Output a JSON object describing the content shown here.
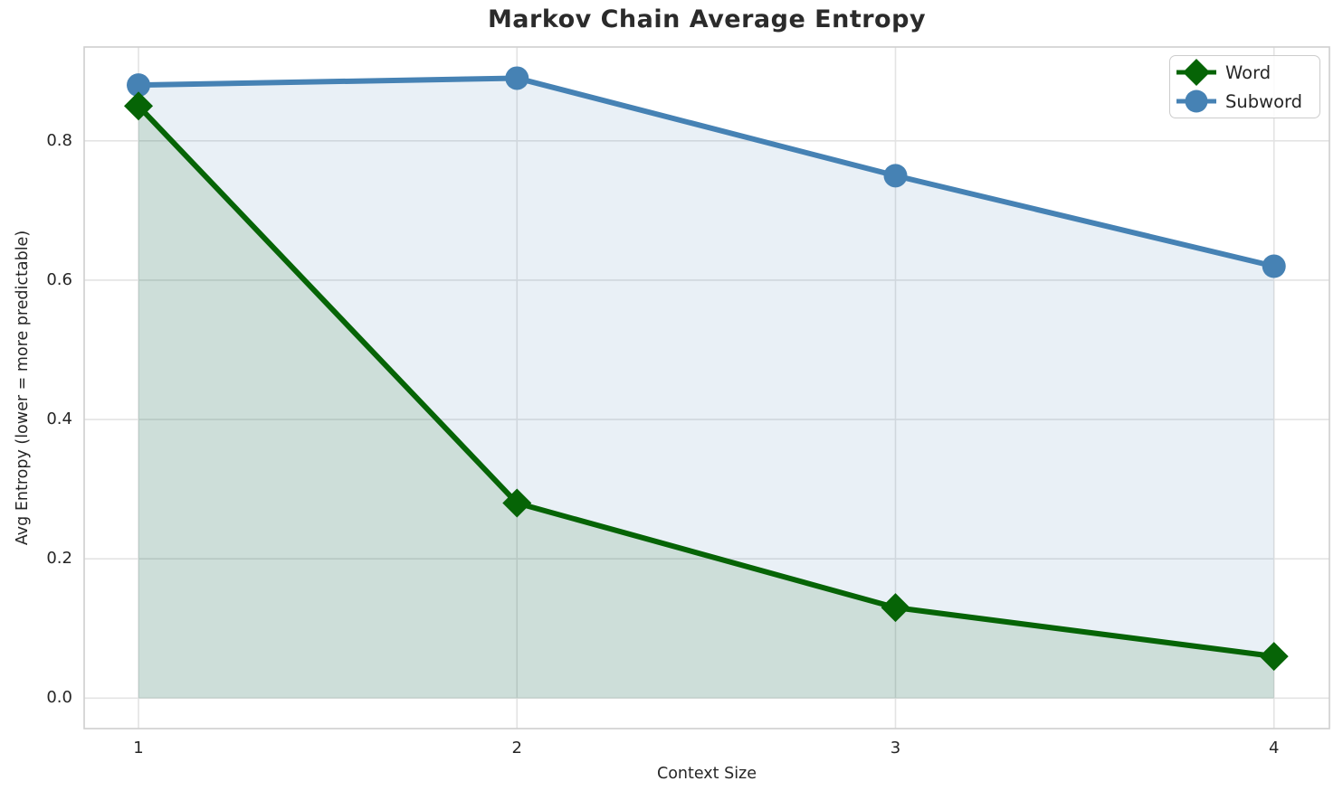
{
  "chart_data": {
    "type": "line",
    "title": "Markov Chain Average Entropy",
    "xlabel": "Context Size",
    "ylabel": "Avg Entropy (lower = more predictable)",
    "x": [
      1,
      2,
      3,
      4
    ],
    "series": [
      {
        "name": "Word",
        "values": [
          0.85,
          0.28,
          0.13,
          0.06
        ],
        "color": "#066406",
        "marker": "diamond",
        "fill": true
      },
      {
        "name": "Subword",
        "values": [
          0.88,
          0.89,
          0.75,
          0.62
        ],
        "color": "#4682b4",
        "marker": "circle",
        "fill": true
      }
    ],
    "xticks": [
      "1",
      "2",
      "3",
      "4"
    ],
    "xtick_values": [
      1,
      2,
      3,
      4
    ],
    "yticks": [
      "0.0",
      "0.2",
      "0.4",
      "0.6",
      "0.8"
    ],
    "ytick_values": [
      0.0,
      0.2,
      0.4,
      0.6,
      0.8
    ],
    "xlim": [
      0.8565,
      4.1465
    ],
    "ylim": [
      -0.0437,
      0.9347
    ],
    "grid": true,
    "grid_color": "#e3e3e3",
    "spine_color": "#cfcfcf",
    "fill_opacity": 0.12,
    "line_width": 6,
    "legend": {
      "position": "upper right",
      "entries": [
        "Word",
        "Subword"
      ]
    }
  }
}
